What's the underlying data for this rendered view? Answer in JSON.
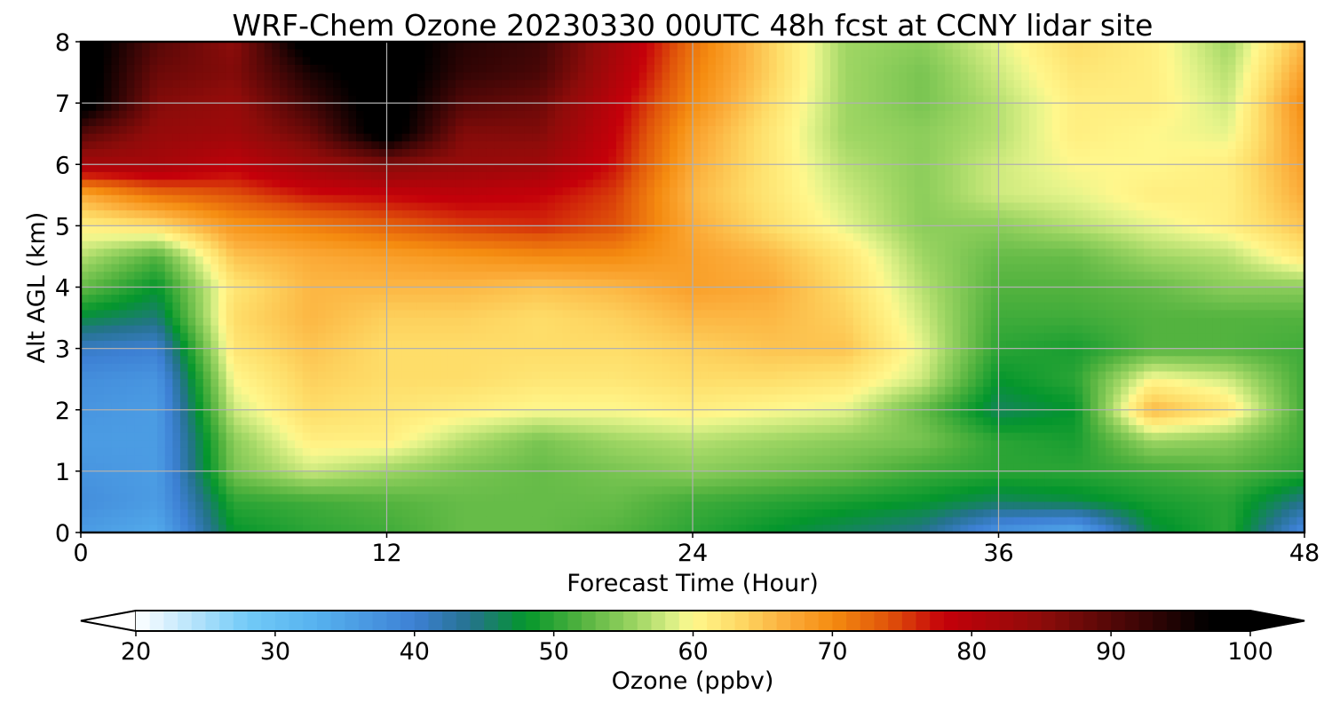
{
  "chart_data": {
    "type": "heatmap",
    "title": "WRF-Chem Ozone  20230330 00UTC 48h fcst at CCNY lidar site",
    "xlabel": "Forecast Time (Hour)",
    "ylabel": "Alt AGL (km)",
    "xlim": [
      0,
      48
    ],
    "ylim": [
      0,
      8
    ],
    "x_ticks": [
      "0",
      "12",
      "24",
      "36",
      "48"
    ],
    "y_ticks": [
      "0",
      "1",
      "2",
      "3",
      "4",
      "5",
      "6",
      "7",
      "8"
    ],
    "grid": true,
    "x_hours": [
      0,
      3,
      6,
      9,
      12,
      15,
      18,
      21,
      24,
      27,
      30,
      33,
      36,
      39,
      42,
      45,
      48
    ],
    "y_km": [
      0,
      0.5,
      1,
      1.5,
      2,
      2.5,
      3,
      3.5,
      4,
      4.5,
      5,
      5.5,
      6,
      6.5,
      7,
      7.5,
      8
    ],
    "ozone_ppbv": [
      [
        36,
        34,
        48,
        50,
        51,
        53,
        53,
        52,
        50,
        48,
        46,
        44,
        37,
        34,
        47,
        50,
        38
      ],
      [
        38,
        36,
        50,
        51,
        52,
        53,
        53,
        53,
        51,
        50,
        49,
        48,
        46,
        47,
        49,
        50,
        44
      ],
      [
        37,
        36,
        54,
        58,
        56,
        54,
        53,
        54,
        55,
        54,
        53,
        51,
        50,
        50,
        51,
        52,
        50
      ],
      [
        36,
        36,
        55,
        61,
        61,
        57,
        54,
        56,
        57,
        56,
        55,
        54,
        50,
        49,
        56,
        55,
        51
      ],
      [
        37,
        36,
        58,
        63,
        62,
        61,
        60,
        60,
        61,
        60,
        59,
        53,
        46,
        48,
        66,
        62,
        51
      ],
      [
        38,
        37,
        60,
        64,
        63,
        63,
        62,
        62,
        63,
        63,
        62,
        58,
        48,
        50,
        60,
        58,
        51
      ],
      [
        41,
        40,
        62,
        65,
        63,
        63,
        63,
        63,
        64,
        65,
        65,
        59,
        50,
        49,
        52,
        52,
        51
      ],
      [
        47,
        45,
        63,
        66,
        64,
        64,
        63,
        64,
        66,
        66,
        64,
        58,
        51,
        51,
        52,
        52,
        52
      ],
      [
        53,
        48,
        62,
        66,
        66,
        66,
        65,
        66,
        68,
        67,
        63,
        57,
        52,
        52,
        53,
        55,
        55
      ],
      [
        57,
        52,
        65,
        67,
        68,
        69,
        70,
        70,
        68,
        66,
        62,
        56,
        53,
        53,
        56,
        57,
        62
      ],
      [
        61,
        63,
        69,
        71,
        73,
        75,
        76,
        74,
        67,
        63,
        59,
        55,
        55,
        57,
        59,
        61,
        65
      ],
      [
        67,
        72,
        74,
        77,
        78,
        79,
        78,
        75,
        66,
        62,
        58,
        55,
        58,
        59,
        61,
        61,
        67
      ],
      [
        82,
        82,
        79,
        83,
        86,
        84,
        83,
        77,
        67,
        62,
        57,
        55,
        58,
        60,
        60,
        61,
        68
      ],
      [
        90,
        84,
        83,
        88,
        100,
        86,
        86,
        78,
        68,
        62,
        56,
        55,
        57,
        61,
        60,
        59,
        69
      ],
      [
        100,
        86,
        84,
        92,
        100,
        90,
        88,
        79,
        70,
        63,
        56,
        54,
        57,
        61,
        61,
        58,
        70
      ],
      [
        100,
        88,
        86,
        95,
        100,
        93,
        91,
        81,
        71,
        64,
        56,
        54,
        58,
        62,
        61,
        57,
        68
      ],
      [
        100,
        90,
        85,
        100,
        100,
        94,
        92,
        82,
        72,
        64,
        56,
        55,
        59,
        63,
        61,
        56,
        66
      ]
    ],
    "colorbar": {
      "label": "Ozone  (ppbv)",
      "min": 20,
      "max": 100,
      "ticks": [
        "20",
        "30",
        "40",
        "50",
        "60",
        "70",
        "80",
        "90",
        "100"
      ],
      "extend": "both",
      "stops": [
        [
          20,
          "#ffffff"
        ],
        [
          28,
          "#72caf7"
        ],
        [
          33,
          "#56b1ef"
        ],
        [
          40,
          "#3d80d4"
        ],
        [
          44,
          "#25728e"
        ],
        [
          48,
          "#04962c"
        ],
        [
          52,
          "#53b33f"
        ],
        [
          56,
          "#9fd664"
        ],
        [
          59,
          "#e6f48b"
        ],
        [
          60,
          "#fff78c"
        ],
        [
          63,
          "#fedd69"
        ],
        [
          67,
          "#fbaa37"
        ],
        [
          70,
          "#f58c10"
        ],
        [
          74,
          "#e0540a"
        ],
        [
          78,
          "#c5000a"
        ],
        [
          85,
          "#8e0c0a"
        ],
        [
          92,
          "#3d0606"
        ],
        [
          97,
          "#000000"
        ],
        [
          100,
          "#000000"
        ]
      ]
    }
  }
}
